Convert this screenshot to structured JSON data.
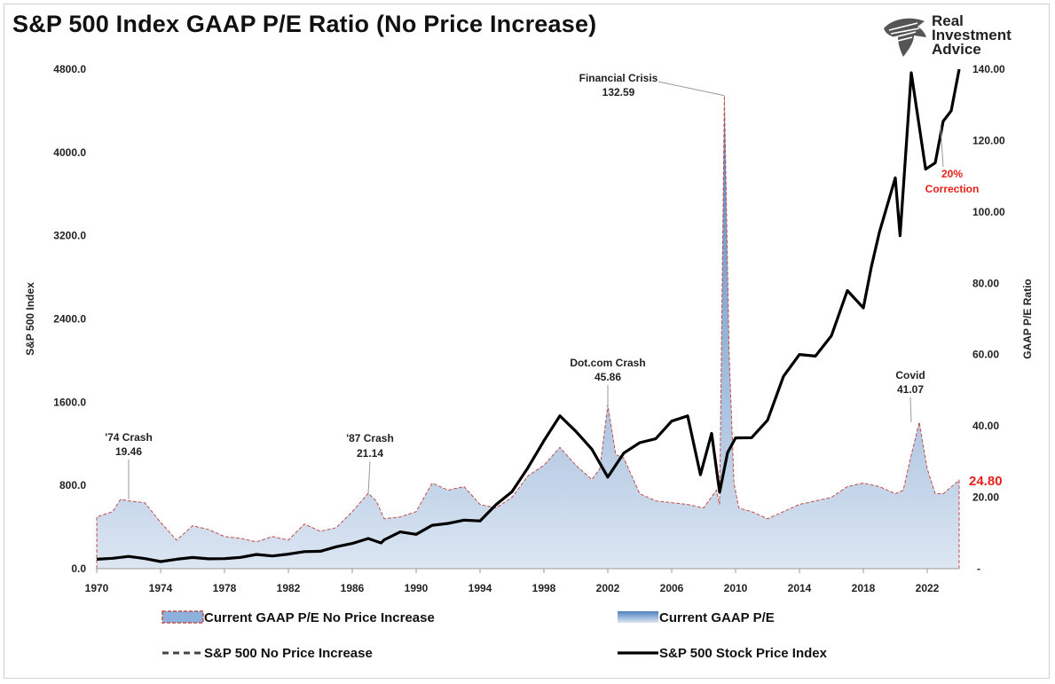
{
  "title": "S&P 500 Index GAAP P/E Ratio (No Price Increase)",
  "logo": {
    "line1": "Real",
    "line2": "Investment",
    "line3": "Advice"
  },
  "chart_data": {
    "type": "area",
    "title": "S&P 500 Index GAAP P/E Ratio (No Price Increase)",
    "ylabel_left": "S&P 500 Index",
    "ylabel_right": "GAAP P/E Ratio",
    "ylim_left": [
      0,
      4800
    ],
    "ylim_right": [
      0,
      140
    ],
    "xlim": [
      1970,
      2024
    ],
    "x_ticks": [
      "1970",
      "1974",
      "1978",
      "1982",
      "1986",
      "1990",
      "1994",
      "1998",
      "2002",
      "2006",
      "2010",
      "2014",
      "2018",
      "2022"
    ],
    "y_ticks_left": [
      "0.0",
      "800.0",
      "1600.0",
      "2400.0",
      "3200.0",
      "4000.0",
      "4800.0"
    ],
    "y_ticks_right": [
      "-",
      "20.00",
      "40.00",
      "60.00",
      "80.00",
      "100.00",
      "120.00",
      "140.00"
    ],
    "legend": [
      {
        "label": "Current GAAP P/E No Price Increase",
        "style": "dashed-red-area"
      },
      {
        "label": "Current GAAP P/E",
        "style": "blue-area"
      },
      {
        "label": "S&P 500 No Price Increase",
        "style": "dashed-gray-line"
      },
      {
        "label": "S&P 500 Stock Price Index",
        "style": "black-line"
      }
    ],
    "series": [
      {
        "name": "Current GAAP P/E",
        "axis": "right",
        "x": [
          1970,
          1971,
          1971.5,
          1972,
          1973,
          1974,
          1975,
          1976,
          1977,
          1978,
          1979,
          1980,
          1981,
          1982,
          1983,
          1984,
          1985,
          1986,
          1987,
          1987.5,
          1988,
          1989,
          1990,
          1991,
          1992,
          1993,
          1994,
          1995,
          1996,
          1997,
          1998,
          1999,
          2000,
          2001,
          2001.5,
          2002,
          2002.5,
          2003,
          2004,
          2005,
          2006,
          2007,
          2008,
          2008.8,
          2009,
          2009.3,
          2009.6,
          2009.9,
          2010.2,
          2011,
          2012,
          2013,
          2014,
          2015,
          2016,
          2017,
          2018,
          2019,
          2020,
          2020.5,
          2020.9,
          2021.5,
          2022,
          2022.5,
          2023,
          2024
        ],
        "values": [
          14.5,
          16,
          19.46,
          19,
          18.5,
          13,
          8,
          12,
          11,
          9,
          8.5,
          7.5,
          9,
          8,
          12.5,
          10.5,
          11.5,
          16,
          21.14,
          19,
          14,
          14.5,
          16,
          24,
          22,
          23,
          18,
          17,
          20,
          26,
          29,
          34,
          29,
          25,
          28,
          45.86,
          32,
          31,
          21,
          19,
          18.5,
          18,
          17,
          22,
          18,
          132.59,
          60,
          24,
          17,
          16,
          14,
          16,
          18,
          19,
          20,
          23,
          24,
          23,
          21,
          22,
          30,
          41.07,
          28,
          21,
          21,
          24.8
        ]
      },
      {
        "name": "S&P 500 Stock Price Index",
        "axis": "left",
        "x": [
          1970,
          1971,
          1972,
          1973,
          1974,
          1975,
          1976,
          1977,
          1978,
          1979,
          1980,
          1981,
          1982,
          1983,
          1984,
          1985,
          1986,
          1987,
          1987.8,
          1988,
          1989,
          1990,
          1991,
          1992,
          1993,
          1994,
          1995,
          1996,
          1997,
          1998,
          1999,
          2000,
          2001,
          2002,
          2003,
          2004,
          2005,
          2006,
          2007,
          2007.8,
          2008.5,
          2009,
          2009.5,
          2010,
          2011,
          2012,
          2013,
          2014,
          2015,
          2016,
          2017,
          2018,
          2018.5,
          2019,
          2020,
          2020.3,
          2021,
          2021.9,
          2022.5,
          2023,
          2023.5,
          2024
        ],
        "values": [
          90,
          100,
          118,
          97,
          68,
          90,
          107,
          95,
          96,
          108,
          136,
          122,
          140,
          164,
          167,
          211,
          242,
          290,
          247,
          277,
          353,
          330,
          417,
          435,
          466,
          459,
          615,
          740,
          970,
          1229,
          1469,
          1320,
          1148,
          880,
          1111,
          1211,
          1248,
          1418,
          1468,
          903,
          1300,
          735,
          1115,
          1257,
          1258,
          1426,
          1848,
          2058,
          2043,
          2238,
          2673,
          2506,
          2900,
          3230,
          3756,
          3200,
          4766,
          3839,
          3900,
          4300,
          4400,
          4800
        ]
      }
    ],
    "annotations": [
      {
        "label": "'74 Crash",
        "value": "19.46",
        "x": 1972
      },
      {
        "label": "'87 Crash",
        "value": "21.14",
        "x": 1987
      },
      {
        "label": "Dot.com Crash",
        "value": "45.86",
        "x": 2002
      },
      {
        "label": "Financial Crisis",
        "value": "132.59",
        "x": 2009.3
      },
      {
        "label": "Covid",
        "value": "41.07",
        "x": 2021
      },
      {
        "label": "20%",
        "value": "Correction",
        "x": 2022.3,
        "color": "#e8201c"
      }
    ],
    "last_value_label": "24.80",
    "colors": {
      "pe_area_top": "#4f81bd",
      "pe_area_bottom": "#dce6f2",
      "pe_outline": "#c0504d",
      "price_line": "#000000",
      "highlight": "#e8201c"
    }
  }
}
